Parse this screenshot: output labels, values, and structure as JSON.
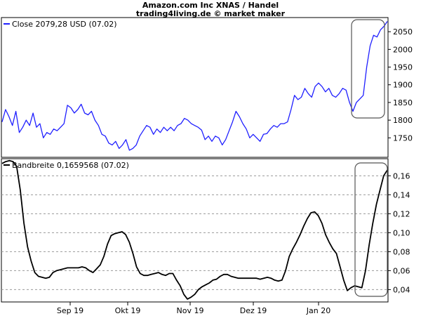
{
  "header": {
    "title": "Amazon.com Inc XNAS / Handel",
    "subtitle": "trading4living.de © market maker"
  },
  "colors": {
    "price_line": "#1f1fff",
    "indicator_line": "#000000",
    "grid": "#9a9a9a",
    "highlight_box": "#555555"
  },
  "chart_data": [
    {
      "type": "line",
      "legend": "Close 2079,28 USD (07.02)",
      "legend_position": "top-left",
      "y_ticks": [
        "1750",
        "1800",
        "1850",
        "1900",
        "1950",
        "2000",
        "2050"
      ],
      "ylim": [
        1695,
        2090
      ],
      "x_ticks": [
        "Sep 19",
        "Okt 19",
        "Nov 19",
        "Dez 19",
        "Jan 20"
      ],
      "grid": false,
      "series": [
        {
          "name": "Close",
          "values": [
            1795,
            1830,
            1810,
            1785,
            1825,
            1765,
            1780,
            1800,
            1785,
            1820,
            1780,
            1790,
            1750,
            1765,
            1760,
            1775,
            1770,
            1780,
            1790,
            1842,
            1835,
            1820,
            1830,
            1845,
            1820,
            1815,
            1825,
            1800,
            1785,
            1760,
            1755,
            1735,
            1730,
            1740,
            1720,
            1730,
            1745,
            1715,
            1720,
            1730,
            1755,
            1770,
            1785,
            1780,
            1760,
            1775,
            1765,
            1780,
            1770,
            1780,
            1770,
            1785,
            1790,
            1805,
            1800,
            1790,
            1785,
            1780,
            1772,
            1745,
            1755,
            1740,
            1755,
            1750,
            1730,
            1745,
            1770,
            1795,
            1825,
            1810,
            1790,
            1775,
            1750,
            1760,
            1750,
            1740,
            1760,
            1762,
            1775,
            1785,
            1780,
            1790,
            1790,
            1795,
            1830,
            1870,
            1858,
            1865,
            1890,
            1875,
            1865,
            1895,
            1905,
            1895,
            1880,
            1890,
            1870,
            1865,
            1875,
            1890,
            1885,
            1850,
            1825,
            1850,
            1860,
            1870,
            1950,
            2010,
            2040,
            2035,
            2055,
            2065,
            2079
          ]
        }
      ]
    },
    {
      "type": "line",
      "legend": "Bandbreite 0,1659568 (07.02)",
      "legend_position": "top-left",
      "y_ticks": [
        "0,04",
        "0,06",
        "0,08",
        "0,10",
        "0,12",
        "0,14",
        "0,16"
      ],
      "ylim": [
        0.027,
        0.178
      ],
      "grid": true,
      "series": [
        {
          "name": "Bandbreite",
          "values": [
            0.173,
            0.175,
            0.176,
            0.175,
            0.17,
            0.145,
            0.11,
            0.085,
            0.07,
            0.058,
            0.054,
            0.053,
            0.052,
            0.053,
            0.058,
            0.06,
            0.061,
            0.062,
            0.063,
            0.063,
            0.063,
            0.063,
            0.064,
            0.063,
            0.06,
            0.058,
            0.062,
            0.066,
            0.075,
            0.088,
            0.097,
            0.099,
            0.1,
            0.101,
            0.098,
            0.09,
            0.078,
            0.064,
            0.057,
            0.055,
            0.055,
            0.056,
            0.057,
            0.058,
            0.056,
            0.055,
            0.057,
            0.057,
            0.05,
            0.044,
            0.035,
            0.03,
            0.032,
            0.035,
            0.04,
            0.043,
            0.045,
            0.047,
            0.05,
            0.051,
            0.054,
            0.056,
            0.056,
            0.054,
            0.053,
            0.052,
            0.052,
            0.052,
            0.052,
            0.052,
            0.052,
            0.051,
            0.052,
            0.053,
            0.052,
            0.05,
            0.049,
            0.05,
            0.06,
            0.075,
            0.083,
            0.09,
            0.098,
            0.107,
            0.115,
            0.121,
            0.122,
            0.118,
            0.11,
            0.098,
            0.09,
            0.083,
            0.078,
            0.064,
            0.05,
            0.039,
            0.042,
            0.044,
            0.043,
            0.042,
            0.06,
            0.087,
            0.11,
            0.13,
            0.145,
            0.16,
            0.166
          ]
        }
      ]
    }
  ]
}
